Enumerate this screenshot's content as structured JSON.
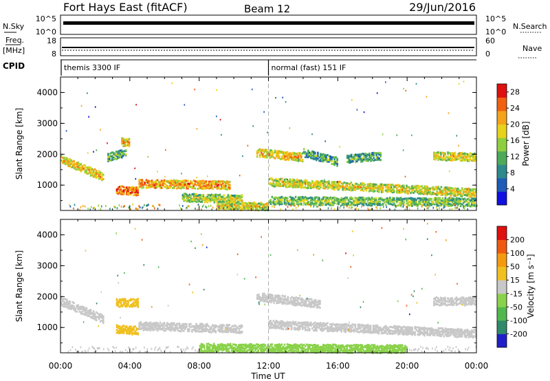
{
  "header": {
    "station": "Fort Hays East (fitACF)",
    "beam": "Beam 12",
    "date": "29/Jun/2016"
  },
  "status_panels": {
    "nsky": {
      "left_label": "N.Sky",
      "right_label": "N.Search",
      "left_ticks": [
        "10^5",
        "10^0"
      ],
      "right_ticks": [
        "10^5",
        "10^0"
      ]
    },
    "freq": {
      "left_label_1": "Freq.",
      "left_label_2": "[MHz]",
      "right_label": "Nave",
      "left_ticks": [
        "18",
        "8"
      ],
      "right_ticks": [
        "60",
        "0"
      ]
    },
    "cpid": {
      "label": "CPID",
      "modes": [
        {
          "name": "themis 3300 IF",
          "start_hour": 0
        },
        {
          "name": "normal (fast) 151 IF",
          "start_hour": 12
        }
      ]
    }
  },
  "chart_data": [
    {
      "type": "heatmap",
      "title": "",
      "panel": "power",
      "xlabel": "",
      "ylabel": "Slant Range [km]",
      "xlim": [
        0,
        24
      ],
      "ylim": [
        180,
        4500
      ],
      "yticks": [
        "1000",
        "2000",
        "3000",
        "4000"
      ],
      "colorbar": {
        "label": "Power [dB]",
        "ticks": [
          "4",
          "8",
          "12",
          "16",
          "20",
          "24",
          "28"
        ],
        "range": [
          0,
          30
        ],
        "colors": [
          "#1010e0",
          "#1f5cb8",
          "#2d8a8c",
          "#4daa5a",
          "#8fcf3f",
          "#e8d21a",
          "#f5a31a",
          "#f06010",
          "#e01010"
        ]
      },
      "echo_regions": [
        {
          "start": 0.0,
          "end": 2.5,
          "r0": 1900,
          "r1": 1300,
          "value": 18
        },
        {
          "start": 2.7,
          "end": 3.8,
          "r0": 1950,
          "r1": 2100,
          "value": 10
        },
        {
          "start": 3.5,
          "end": 4.0,
          "r0": 2450,
          "r1": 2450,
          "value": 18
        },
        {
          "start": 3.2,
          "end": 4.5,
          "r0": 900,
          "r1": 850,
          "value": 22
        },
        {
          "start": 4.5,
          "end": 9.8,
          "r0": 1100,
          "r1": 1050,
          "value": 20
        },
        {
          "start": 7.0,
          "end": 10.5,
          "r0": 650,
          "r1": 600,
          "value": 14
        },
        {
          "start": 9.0,
          "end": 12.0,
          "r0": 400,
          "r1": 350,
          "value": 16
        },
        {
          "start": 11.3,
          "end": 14.0,
          "r0": 2100,
          "r1": 1950,
          "value": 18
        },
        {
          "start": 14.0,
          "end": 16.0,
          "r0": 2100,
          "r1": 1800,
          "value": 10
        },
        {
          "start": 16.5,
          "end": 18.5,
          "r0": 1900,
          "r1": 2000,
          "value": 10
        },
        {
          "start": 12.0,
          "end": 24.0,
          "r0": 1150,
          "r1": 800,
          "value": 16
        },
        {
          "start": 12.0,
          "end": 24.0,
          "r0": 550,
          "r1": 500,
          "value": 12
        },
        {
          "start": 21.5,
          "end": 24.0,
          "r0": 2000,
          "r1": 1950,
          "value": 16
        }
      ]
    },
    {
      "type": "heatmap",
      "title": "",
      "panel": "velocity",
      "xlabel": "Time UT",
      "ylabel": "Slant Range [km]",
      "xlim": [
        0,
        24
      ],
      "ylim": [
        180,
        4500
      ],
      "xticks": [
        "00:00",
        "04:00",
        "08:00",
        "12:00",
        "16:00",
        "20:00",
        "00:00"
      ],
      "yticks": [
        "1000",
        "2000",
        "3000",
        "4000"
      ],
      "colorbar": {
        "label": "Velocity [m s⁻¹]",
        "ticks": [
          "200",
          "100",
          "50",
          "15",
          "-15",
          "-50",
          "-100",
          "-200"
        ],
        "range": [
          -250,
          250
        ],
        "colors": [
          "#2020c8",
          "#2f8a6a",
          "#52b84e",
          "#8ad24a",
          "#c8c8c8",
          "#f0c020",
          "#f59a10",
          "#f05a10",
          "#e01010"
        ]
      },
      "echo_regions": [
        {
          "start": 0.0,
          "end": 2.5,
          "r0": 1900,
          "r1": 1300,
          "value": 0
        },
        {
          "start": 3.2,
          "end": 4.5,
          "r0": 1000,
          "r1": 950,
          "value": 60
        },
        {
          "start": 3.2,
          "end": 4.5,
          "r0": 1850,
          "r1": 1850,
          "value": 60
        },
        {
          "start": 4.5,
          "end": 10.5,
          "r0": 1100,
          "r1": 1000,
          "value": 0
        },
        {
          "start": 8.0,
          "end": 20.0,
          "r0": 400,
          "r1": 350,
          "value": -40
        },
        {
          "start": 11.3,
          "end": 15.0,
          "r0": 2050,
          "r1": 1800,
          "value": 0
        },
        {
          "start": 12.0,
          "end": 24.0,
          "r0": 1150,
          "r1": 850,
          "value": 0
        },
        {
          "start": 21.5,
          "end": 24.0,
          "r0": 1900,
          "r1": 1900,
          "value": 0
        }
      ]
    }
  ]
}
